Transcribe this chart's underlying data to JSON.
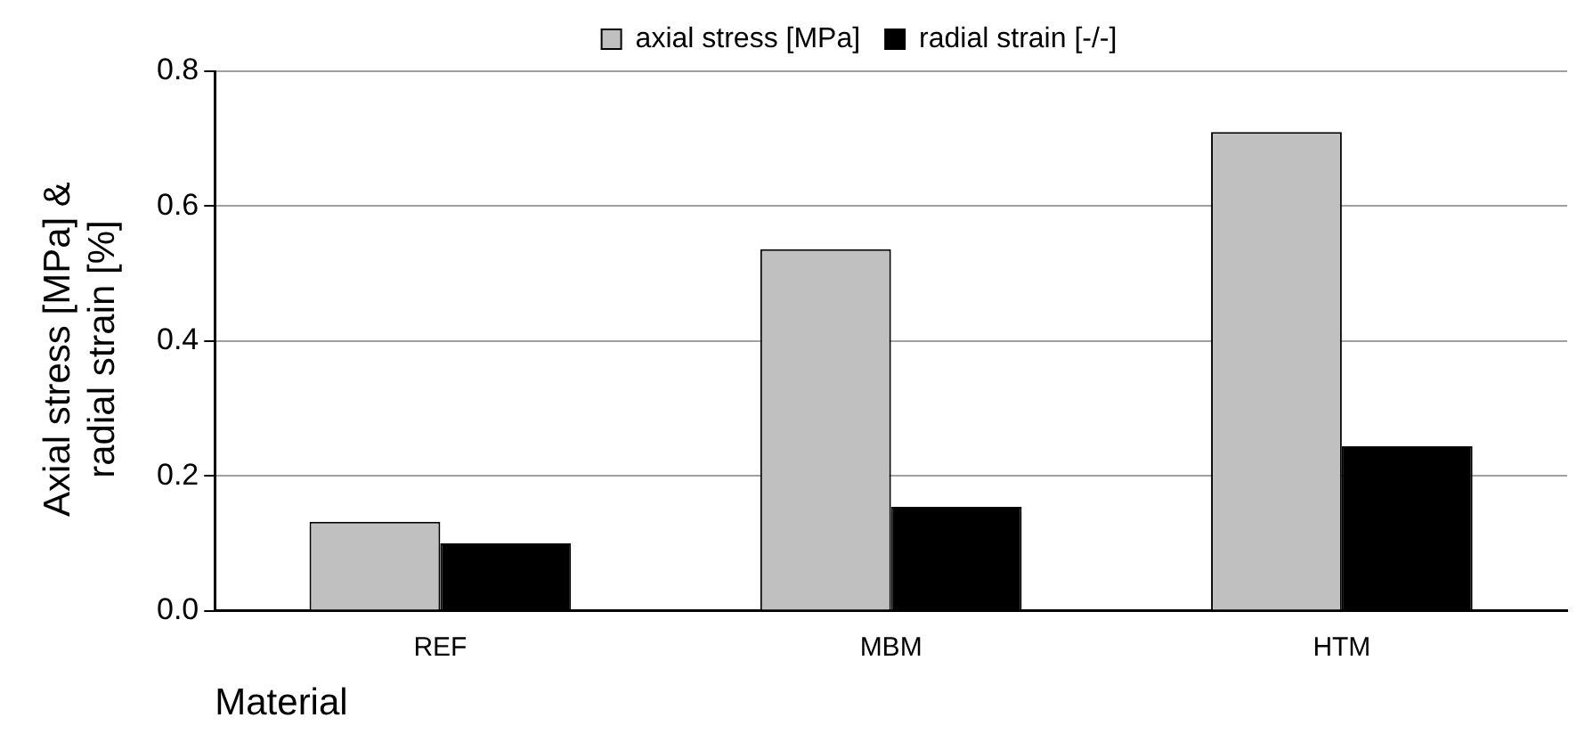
{
  "chart_data": {
    "type": "bar",
    "xlabel": "Material",
    "ylabel": "Axial stress [MPa] & radial strain [%]",
    "categories": [
      "REF",
      "MBM",
      "HTM"
    ],
    "series": [
      {
        "name": "axial stress [MPa]",
        "color": "#c0c0c0",
        "values": [
          0.132,
          0.536,
          0.71
        ]
      },
      {
        "name": "radial strain [-/-]",
        "color": "#000000",
        "values": [
          0.1,
          0.154,
          0.244
        ]
      }
    ],
    "ylim": [
      0,
      0.8
    ],
    "yticks": [
      {
        "value": 0,
        "label": "0.0"
      },
      0.2,
      0.4,
      0.6,
      0.8
    ],
    "grid": "y",
    "legend": "top"
  }
}
